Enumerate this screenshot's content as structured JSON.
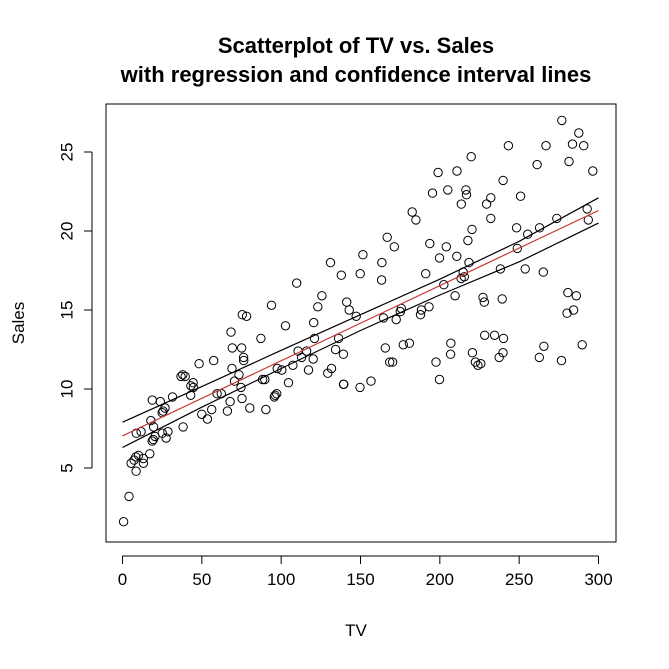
{
  "chart_data": {
    "type": "scatter",
    "title_line1": "Scatterplot of TV vs. Sales",
    "title_line2": "with regression and confidence interval lines",
    "xlabel": "TV",
    "ylabel": "Sales",
    "xlim": [
      0,
      300
    ],
    "ylim": [
      0,
      27
    ],
    "x_ticks": [
      0,
      50,
      100,
      150,
      200,
      250,
      300
    ],
    "y_ticks": [
      5,
      10,
      15,
      20,
      25
    ],
    "grid": false,
    "regression_line": {
      "color": "#c83232",
      "x": [
        0,
        300
      ],
      "y": [
        7.03,
        21.3
      ]
    },
    "confidence_upper": {
      "color": "#000000",
      "x": [
        0,
        50,
        100,
        150,
        200,
        250,
        300
      ],
      "y": [
        7.9,
        10.15,
        12.45,
        14.7,
        16.95,
        19.35,
        22.1
      ]
    },
    "confidence_lower": {
      "color": "#000000",
      "x": [
        0,
        50,
        100,
        150,
        200,
        250,
        300
      ],
      "y": [
        6.3,
        8.85,
        11.3,
        13.7,
        15.95,
        18.05,
        20.5
      ]
    },
    "points": [
      [
        0.7,
        1.6
      ],
      [
        4.1,
        3.2
      ],
      [
        5.4,
        5.3
      ],
      [
        7.3,
        5.5
      ],
      [
        8.4,
        5.7
      ],
      [
        8.6,
        4.8
      ],
      [
        8.7,
        7.2
      ],
      [
        10.1,
        5.8
      ],
      [
        11.7,
        7.3
      ],
      [
        13.1,
        5.6
      ],
      [
        13.2,
        5.3
      ],
      [
        17.2,
        5.9
      ],
      [
        17.9,
        8.0
      ],
      [
        18.7,
        6.7
      ],
      [
        18.8,
        9.3
      ],
      [
        19.4,
        6.8
      ],
      [
        19.6,
        7.6
      ],
      [
        20.5,
        7.0
      ],
      [
        23.8,
        9.2
      ],
      [
        25.0,
        8.5
      ],
      [
        25.1,
        7.2
      ],
      [
        25.6,
        8.6
      ],
      [
        26.8,
        8.8
      ],
      [
        27.5,
        6.9
      ],
      [
        28.6,
        7.3
      ],
      [
        31.5,
        9.5
      ],
      [
        36.9,
        10.8
      ],
      [
        38.0,
        10.9
      ],
      [
        38.2,
        7.6
      ],
      [
        39.5,
        10.8
      ],
      [
        43.0,
        9.6
      ],
      [
        43.1,
        10.2
      ],
      [
        44.5,
        10.4
      ],
      [
        44.7,
        10.1
      ],
      [
        48.3,
        11.6
      ],
      [
        50.0,
        8.4
      ],
      [
        53.5,
        8.1
      ],
      [
        56.2,
        8.7
      ],
      [
        57.5,
        11.8
      ],
      [
        59.6,
        9.7
      ],
      [
        62.3,
        9.7
      ],
      [
        66.1,
        8.6
      ],
      [
        67.8,
        9.2
      ],
      [
        68.4,
        13.6
      ],
      [
        69.0,
        11.3
      ],
      [
        69.2,
        12.6
      ],
      [
        70.6,
        10.5
      ],
      [
        73.4,
        10.9
      ],
      [
        74.7,
        10.1
      ],
      [
        75.1,
        12.6
      ],
      [
        75.3,
        9.4
      ],
      [
        75.5,
        14.7
      ],
      [
        76.3,
        12.0
      ],
      [
        76.4,
        11.8
      ],
      [
        78.2,
        14.6
      ],
      [
        80.2,
        8.8
      ],
      [
        87.2,
        13.2
      ],
      [
        88.3,
        10.6
      ],
      [
        89.7,
        10.6
      ],
      [
        90.4,
        8.7
      ],
      [
        93.9,
        15.3
      ],
      [
        95.7,
        9.5
      ],
      [
        96.2,
        9.6
      ],
      [
        97.2,
        9.7
      ],
      [
        97.5,
        11.3
      ],
      [
        100.4,
        11.2
      ],
      [
        102.7,
        14.0
      ],
      [
        104.6,
        10.4
      ],
      [
        107.4,
        11.5
      ],
      [
        109.8,
        16.7
      ],
      [
        110.7,
        12.4
      ],
      [
        112.9,
        12.0
      ],
      [
        116.0,
        12.4
      ],
      [
        117.2,
        11.2
      ],
      [
        120.2,
        11.9
      ],
      [
        120.5,
        14.2
      ],
      [
        121.0,
        13.2
      ],
      [
        123.1,
        15.2
      ],
      [
        125.7,
        15.9
      ],
      [
        129.4,
        11.0
      ],
      [
        131.1,
        18.0
      ],
      [
        131.7,
        11.3
      ],
      [
        134.3,
        12.5
      ],
      [
        136.2,
        13.2
      ],
      [
        137.9,
        17.2
      ],
      [
        139.2,
        12.2
      ],
      [
        139.3,
        10.3
      ],
      [
        139.5,
        10.3
      ],
      [
        141.3,
        15.5
      ],
      [
        142.9,
        15.0
      ],
      [
        147.3,
        14.6
      ],
      [
        149.7,
        10.1
      ],
      [
        149.8,
        17.3
      ],
      [
        151.5,
        18.5
      ],
      [
        156.6,
        10.5
      ],
      [
        163.3,
        16.9
      ],
      [
        163.5,
        18.0
      ],
      [
        164.5,
        14.5
      ],
      [
        165.6,
        12.6
      ],
      [
        166.8,
        19.6
      ],
      [
        168.4,
        11.7
      ],
      [
        170.2,
        11.7
      ],
      [
        171.3,
        19.0
      ],
      [
        172.5,
        14.4
      ],
      [
        175.1,
        14.9
      ],
      [
        175.7,
        15.1
      ],
      [
        177.0,
        12.8
      ],
      [
        180.8,
        12.9
      ],
      [
        182.6,
        21.2
      ],
      [
        184.9,
        20.7
      ],
      [
        187.8,
        14.7
      ],
      [
        188.4,
        15.0
      ],
      [
        191.1,
        17.3
      ],
      [
        193.2,
        15.2
      ],
      [
        193.7,
        19.2
      ],
      [
        195.4,
        22.4
      ],
      [
        197.6,
        11.7
      ],
      [
        198.9,
        23.7
      ],
      [
        199.8,
        10.6
      ],
      [
        199.8,
        18.3
      ],
      [
        202.5,
        16.6
      ],
      [
        204.1,
        19.0
      ],
      [
        205.0,
        22.6
      ],
      [
        206.8,
        12.2
      ],
      [
        206.9,
        12.9
      ],
      [
        209.6,
        15.9
      ],
      [
        210.7,
        18.4
      ],
      [
        210.8,
        23.8
      ],
      [
        213.4,
        17.0
      ],
      [
        213.5,
        21.7
      ],
      [
        214.7,
        17.4
      ],
      [
        215.4,
        17.1
      ],
      [
        216.4,
        22.6
      ],
      [
        216.8,
        22.3
      ],
      [
        217.7,
        19.4
      ],
      [
        218.4,
        18.0
      ],
      [
        219.8,
        24.7
      ],
      [
        220.3,
        20.1
      ],
      [
        220.5,
        12.3
      ],
      [
        222.4,
        11.7
      ],
      [
        224.0,
        11.5
      ],
      [
        225.8,
        11.6
      ],
      [
        227.2,
        15.8
      ],
      [
        228.0,
        15.5
      ],
      [
        228.3,
        13.4
      ],
      [
        229.5,
        21.7
      ],
      [
        232.1,
        20.8
      ],
      [
        232.1,
        22.1
      ],
      [
        234.5,
        13.4
      ],
      [
        237.4,
        12.0
      ],
      [
        238.2,
        17.6
      ],
      [
        239.3,
        15.7
      ],
      [
        239.8,
        12.3
      ],
      [
        239.9,
        23.2
      ],
      [
        240.1,
        13.2
      ],
      [
        243.2,
        25.4
      ],
      [
        248.4,
        20.2
      ],
      [
        248.8,
        18.9
      ],
      [
        250.9,
        22.2
      ],
      [
        253.8,
        17.6
      ],
      [
        255.4,
        19.8
      ],
      [
        261.3,
        24.2
      ],
      [
        262.7,
        12.0
      ],
      [
        262.9,
        20.2
      ],
      [
        265.2,
        17.4
      ],
      [
        265.6,
        12.7
      ],
      [
        266.9,
        25.4
      ],
      [
        273.7,
        20.8
      ],
      [
        276.7,
        11.8
      ],
      [
        276.9,
        27.0
      ],
      [
        280.2,
        14.8
      ],
      [
        280.7,
        16.1
      ],
      [
        281.4,
        24.4
      ],
      [
        283.6,
        25.5
      ],
      [
        284.3,
        15.0
      ],
      [
        286.0,
        15.9
      ],
      [
        287.6,
        26.2
      ],
      [
        289.7,
        12.8
      ],
      [
        290.7,
        25.4
      ],
      [
        292.9,
        21.4
      ],
      [
        293.6,
        20.7
      ],
      [
        296.4,
        23.8
      ]
    ]
  }
}
